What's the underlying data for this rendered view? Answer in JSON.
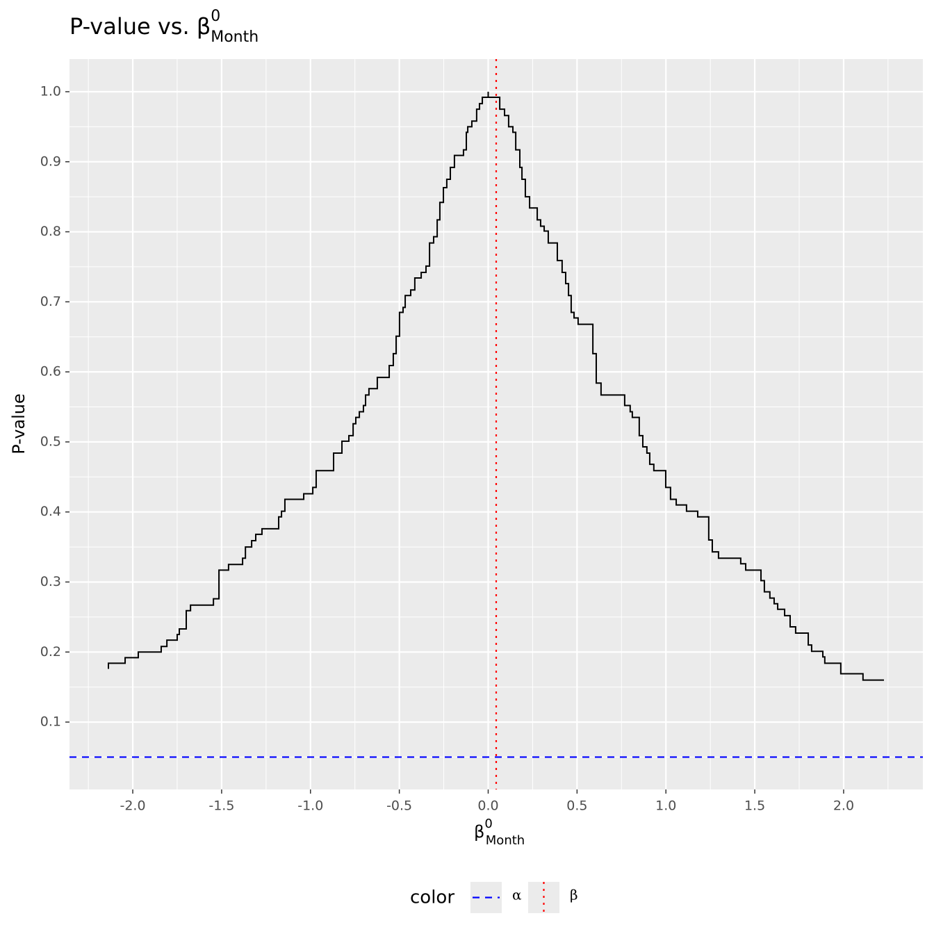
{
  "chart_data": {
    "type": "line",
    "title": {
      "text": "P-value vs. β",
      "superscript": "0",
      "subscript": "Month"
    },
    "x_label": {
      "text": "β",
      "superscript": "0",
      "subscript": "Month"
    },
    "y_label": "P-value",
    "xlim": [
      -2.356,
      2.446
    ],
    "ylim": [
      0.0038,
      1.0466
    ],
    "xticks": [
      {
        "value": -2,
        "label": "-2.0"
      },
      -1.5,
      {
        "value": -1,
        "label": "-1.0"
      },
      -0.5,
      {
        "value": 0,
        "label": "0.0"
      },
      0.5,
      {
        "value": 1,
        "label": "1.0"
      },
      1.5,
      {
        "value": 2,
        "label": "2.0"
      }
    ],
    "yticks": [
      0.1,
      0.2,
      0.3,
      0.4,
      0.5,
      0.6,
      0.7,
      0.8,
      0.9,
      {
        "value": 1,
        "label": "1.0"
      }
    ],
    "grid": true,
    "series": [
      {
        "color": "#000000",
        "x": [
          -2.137,
          -2.137,
          -2.043,
          -2.043,
          -1.969,
          -1.969,
          -1.84,
          -1.84,
          -1.808,
          -1.808,
          -1.75,
          -1.75,
          -1.738,
          -1.738,
          -1.699,
          -1.699,
          -1.675,
          -1.675,
          -1.546,
          -1.546,
          -1.515,
          -1.515,
          -1.461,
          -1.461,
          -1.382,
          -1.382,
          -1.366,
          -1.366,
          -1.331,
          -1.331,
          -1.308,
          -1.308,
          -1.273,
          -1.273,
          -1.179,
          -1.179,
          -1.163,
          -1.163,
          -1.144,
          -1.144,
          -1.038,
          -1.038,
          -0.987,
          -0.987,
          -0.968,
          -0.968,
          -0.87,
          -0.87,
          -0.823,
          -0.823,
          -0.784,
          -0.784,
          -0.76,
          -0.76,
          -0.745,
          -0.745,
          -0.725,
          -0.725,
          -0.702,
          -0.702,
          -0.69,
          -0.69,
          -0.671,
          -0.671,
          -0.624,
          -0.624,
          -0.557,
          -0.557,
          -0.534,
          -0.534,
          -0.518,
          -0.518,
          -0.499,
          -0.499,
          -0.479,
          -0.479,
          -0.467,
          -0.467,
          -0.436,
          -0.436,
          -0.413,
          -0.413,
          -0.377,
          -0.377,
          -0.35,
          -0.35,
          -0.33,
          -0.33,
          -0.307,
          -0.307,
          -0.287,
          -0.287,
          -0.272,
          -0.272,
          -0.252,
          -0.252,
          -0.233,
          -0.233,
          -0.213,
          -0.213,
          -0.19,
          -0.19,
          -0.139,
          -0.139,
          -0.123,
          -0.123,
          -0.115,
          -0.115,
          -0.092,
          -0.092,
          -0.065,
          -0.065,
          -0.049,
          -0.049,
          -0.033,
          -0.033,
          0.0,
          0.0,
          0.0,
          0.065,
          0.065,
          0.092,
          0.092,
          0.115,
          0.115,
          0.139,
          0.139,
          0.155,
          0.155,
          0.178,
          0.178,
          0.19,
          0.19,
          0.209,
          0.209,
          0.233,
          0.233,
          0.276,
          0.276,
          0.295,
          0.295,
          0.315,
          0.315,
          0.338,
          0.338,
          0.389,
          0.389,
          0.416,
          0.416,
          0.436,
          0.436,
          0.452,
          0.452,
          0.467,
          0.467,
          0.483,
          0.483,
          0.506,
          0.506,
          0.589,
          0.589,
          0.608,
          0.608,
          0.635,
          0.635,
          0.768,
          0.768,
          0.799,
          0.799,
          0.811,
          0.811,
          0.85,
          0.85,
          0.87,
          0.87,
          0.893,
          0.893,
          0.909,
          0.909,
          0.932,
          0.932,
          0.999,
          0.999,
          1.026,
          1.026,
          1.058,
          1.058,
          1.116,
          1.116,
          1.179,
          1.179,
          1.241,
          1.241,
          1.261,
          1.261,
          1.296,
          1.296,
          1.421,
          1.421,
          1.449,
          1.449,
          1.535,
          1.535,
          1.554,
          1.554,
          1.585,
          1.585,
          1.609,
          1.609,
          1.629,
          1.629,
          1.668,
          1.668,
          1.699,
          1.699,
          1.73,
          1.73,
          1.801,
          1.801,
          1.82,
          1.82,
          1.883,
          1.883,
          1.894,
          1.894,
          1.984,
          1.984,
          2.109,
          2.109,
          2.227
        ],
        "values": [
          0.176,
          0.184,
          0.184,
          0.192,
          0.192,
          0.2,
          0.2,
          0.208,
          0.208,
          0.217,
          0.217,
          0.225,
          0.225,
          0.233,
          0.233,
          0.259,
          0.259,
          0.267,
          0.267,
          0.276,
          0.276,
          0.317,
          0.317,
          0.325,
          0.325,
          0.334,
          0.334,
          0.35,
          0.35,
          0.359,
          0.359,
          0.368,
          0.368,
          0.376,
          0.376,
          0.393,
          0.393,
          0.401,
          0.401,
          0.418,
          0.418,
          0.426,
          0.426,
          0.435,
          0.435,
          0.459,
          0.459,
          0.484,
          0.484,
          0.501,
          0.501,
          0.509,
          0.509,
          0.526,
          0.526,
          0.535,
          0.535,
          0.543,
          0.543,
          0.552,
          0.552,
          0.567,
          0.567,
          0.576,
          0.576,
          0.592,
          0.592,
          0.609,
          0.609,
          0.626,
          0.626,
          0.651,
          0.651,
          0.685,
          0.685,
          0.692,
          0.692,
          0.709,
          0.709,
          0.717,
          0.717,
          0.734,
          0.734,
          0.742,
          0.742,
          0.751,
          0.751,
          0.784,
          0.784,
          0.793,
          0.793,
          0.817,
          0.817,
          0.842,
          0.842,
          0.863,
          0.863,
          0.875,
          0.875,
          0.892,
          0.892,
          0.909,
          0.909,
          0.917,
          0.917,
          0.942,
          0.942,
          0.95,
          0.95,
          0.958,
          0.958,
          0.975,
          0.975,
          0.983,
          0.983,
          0.992,
          0.992,
          1.0,
          0.992,
          0.992,
          0.975,
          0.975,
          0.966,
          0.966,
          0.95,
          0.95,
          0.942,
          0.942,
          0.917,
          0.917,
          0.892,
          0.892,
          0.875,
          0.875,
          0.85,
          0.85,
          0.834,
          0.834,
          0.817,
          0.817,
          0.808,
          0.808,
          0.801,
          0.801,
          0.784,
          0.784,
          0.759,
          0.759,
          0.742,
          0.742,
          0.726,
          0.726,
          0.709,
          0.709,
          0.685,
          0.685,
          0.677,
          0.677,
          0.668,
          0.668,
          0.626,
          0.626,
          0.584,
          0.584,
          0.567,
          0.567,
          0.552,
          0.552,
          0.543,
          0.543,
          0.535,
          0.535,
          0.509,
          0.509,
          0.493,
          0.493,
          0.484,
          0.484,
          0.468,
          0.468,
          0.459,
          0.459,
          0.435,
          0.435,
          0.418,
          0.418,
          0.41,
          0.41,
          0.401,
          0.401,
          0.393,
          0.393,
          0.36,
          0.36,
          0.343,
          0.343,
          0.334,
          0.334,
          0.326,
          0.326,
          0.317,
          0.317,
          0.302,
          0.302,
          0.286,
          0.286,
          0.277,
          0.277,
          0.269,
          0.269,
          0.261,
          0.261,
          0.252,
          0.252,
          0.236,
          0.236,
          0.227,
          0.227,
          0.21,
          0.21,
          0.201,
          0.201,
          0.193,
          0.193,
          0.184,
          0.184,
          0.169,
          0.169,
          0.16,
          0.16
        ]
      }
    ],
    "reference_lines": [
      {
        "name": "α",
        "axis": "y",
        "value": 0.05,
        "color": "#0000ff",
        "dash": "dashed"
      },
      {
        "name": "β",
        "axis": "x",
        "value": 0.045,
        "color": "#ff0000",
        "dash": "dotted"
      }
    ],
    "legend": {
      "title": "color",
      "position": "bottom"
    }
  }
}
